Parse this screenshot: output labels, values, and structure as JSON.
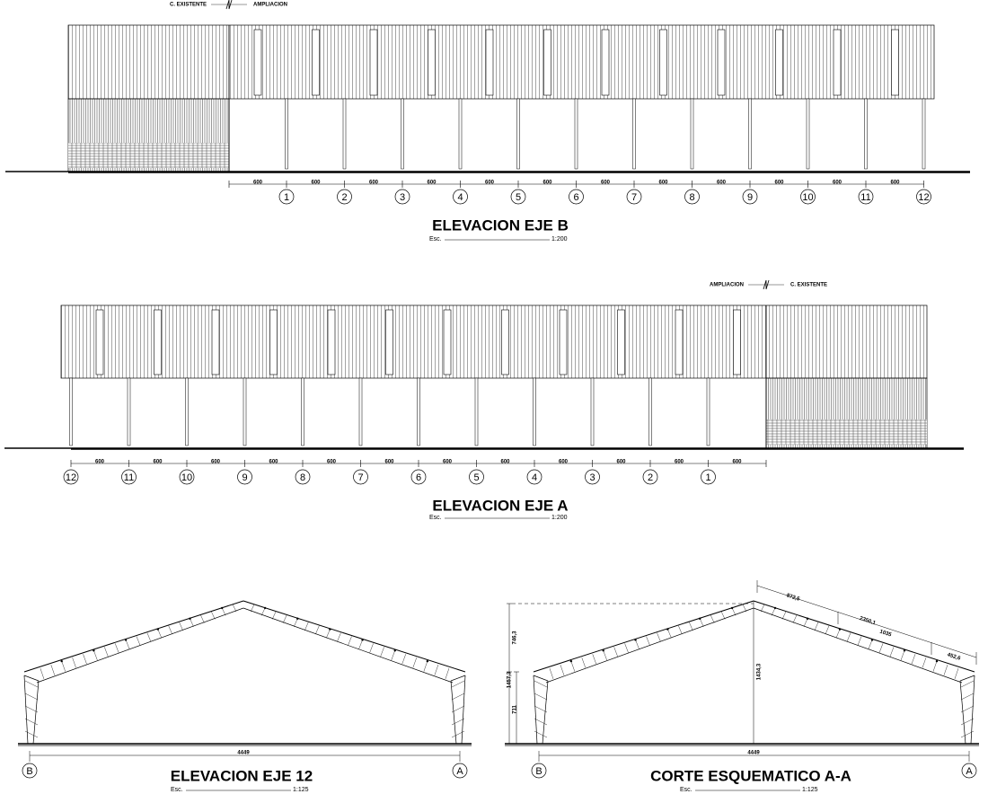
{
  "elevation_b": {
    "label_existing": "C. EXISTENTE",
    "label_extension": "AMPLIACION",
    "dimensions": [
      "600",
      "600",
      "600",
      "600",
      "600",
      "600",
      "600",
      "600",
      "600",
      "600",
      "600",
      "600"
    ],
    "axes": [
      "1",
      "2",
      "3",
      "4",
      "5",
      "6",
      "7",
      "8",
      "9",
      "10",
      "11",
      "12"
    ],
    "title": "ELEVACION EJE B",
    "scale_prefix": "Esc.",
    "scale": "1:200"
  },
  "elevation_a": {
    "label_existing": "C. EXISTENTE",
    "label_extension": "AMPLIACION",
    "dimensions": [
      "600",
      "600",
      "600",
      "600",
      "600",
      "600",
      "600",
      "600",
      "600",
      "600",
      "600",
      "600"
    ],
    "axes": [
      "12",
      "11",
      "10",
      "9",
      "8",
      "7",
      "6",
      "5",
      "4",
      "3",
      "2",
      "1"
    ],
    "title": "ELEVACION EJE A",
    "scale_prefix": "Esc.",
    "scale": "1:200"
  },
  "elevation_12": {
    "span": "4449",
    "axis_left": "B",
    "axis_right": "A",
    "title": "ELEVACION EJE 12",
    "scale_prefix": "Esc.",
    "scale": "1:125"
  },
  "section_aa": {
    "heights": [
      "746,3",
      "1457,3",
      "711"
    ],
    "ridge_height": "1434,3",
    "slope_dims": [
      "872,5",
      "2350,1",
      "1035",
      "452,6"
    ],
    "span": "4449",
    "axis_left": "B",
    "axis_right": "A",
    "title": "CORTE ESQUEMATICO A-A",
    "scale_prefix": "Esc.",
    "scale": "1:125"
  }
}
